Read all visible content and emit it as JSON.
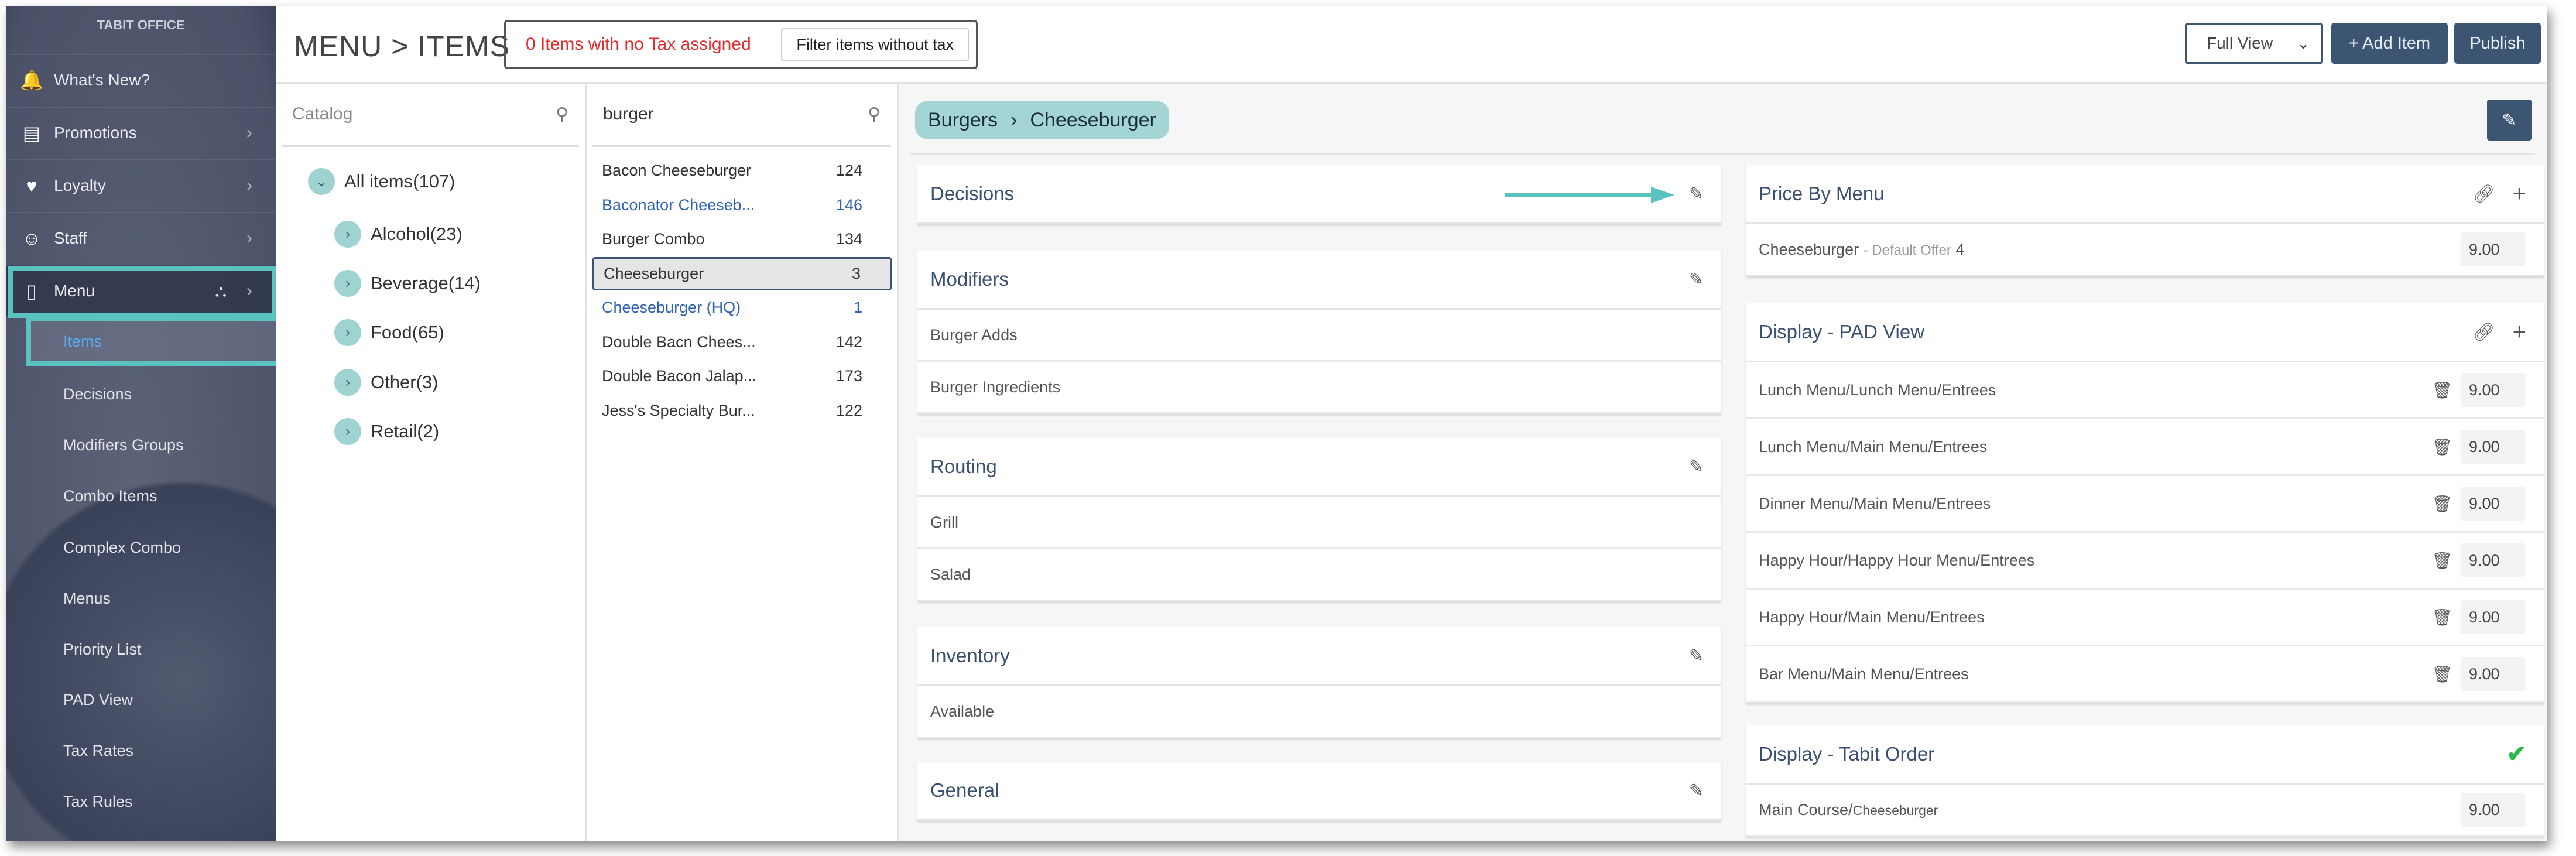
{
  "sidebar": {
    "brand": "TABIT OFFICE",
    "items": [
      {
        "label": "What's New?",
        "icon": "bell-icon",
        "chevron": false
      },
      {
        "label": "Promotions",
        "icon": "sale-sign-icon",
        "chevron": true
      },
      {
        "label": "Loyalty",
        "icon": "tag-heart-icon",
        "chevron": true
      },
      {
        "label": "Staff",
        "icon": "users-icon",
        "chevron": true
      },
      {
        "label": "Menu",
        "icon": "clipboard-icon",
        "chevron": true
      }
    ],
    "sub_items": [
      "Items",
      "Decisions",
      "Modifiers Groups",
      "Combo Items",
      "Complex Combo",
      "Menus",
      "Priority List",
      "PAD View",
      "Tax Rates",
      "Tax Rules"
    ],
    "active_sub": "Items",
    "highlight_color": "#5bc3bf"
  },
  "header": {
    "title": "MENU > ITEMS",
    "tax_warning": "0 Items with no Tax assigned",
    "filter_button": "Filter items without tax",
    "view_select": "Full View",
    "add_item": "+ Add Item",
    "publish": "Publish"
  },
  "catalog": {
    "search_placeholder": "Catalog",
    "tree": [
      {
        "label": "All items(107)",
        "expanded": true
      },
      {
        "label": "Alcohol(23)"
      },
      {
        "label": "Beverage(14)"
      },
      {
        "label": "Food(65)"
      },
      {
        "label": "Other(3)"
      },
      {
        "label": "Retail(2)"
      }
    ]
  },
  "items": {
    "search_value": "burger",
    "rows": [
      {
        "name": "Bacon Cheeseburger",
        "count": "124"
      },
      {
        "name": "Baconator Cheeseb...",
        "count": "146",
        "blue": true
      },
      {
        "name": "Burger Combo",
        "count": "134"
      },
      {
        "name": "Cheeseburger",
        "count": "3",
        "selected": true
      },
      {
        "name": "Cheeseburger (HQ)",
        "count": "1",
        "blue": true
      },
      {
        "name": "Double Bacn Chees...",
        "count": "142"
      },
      {
        "name": "Double Bacon Jalap...",
        "count": "173"
      },
      {
        "name": "Jess's Specialty Bur...",
        "count": "122"
      }
    ]
  },
  "detail": {
    "breadcrumb": [
      "Burgers",
      "›",
      "Cheeseburger"
    ],
    "left_cards": [
      {
        "title": "Decisions",
        "rows": []
      },
      {
        "title": "Modifiers",
        "rows": [
          "Burger Adds",
          "Burger Ingredients"
        ]
      },
      {
        "title": "Routing",
        "rows": [
          "Grill",
          "Salad"
        ]
      },
      {
        "title": "Inventory",
        "rows": [
          "Available"
        ]
      },
      {
        "title": "General",
        "rows": []
      }
    ],
    "price_by_menu": {
      "title": "Price By Menu",
      "row": {
        "name": "Cheeseburger",
        "offer": "- Default Offer",
        "num": "4",
        "price": "9.00"
      }
    },
    "pad_view": {
      "title": "Display - PAD View",
      "rows": [
        {
          "path": "Lunch Menu/Lunch Menu/Entrees",
          "price": "9.00"
        },
        {
          "path": "Lunch Menu/Main Menu/Entrees",
          "price": "9.00"
        },
        {
          "path": "Dinner Menu/Main Menu/Entrees",
          "price": "9.00"
        },
        {
          "path": "Happy Hour/Happy Hour Menu/Entrees",
          "price": "9.00"
        },
        {
          "path": "Happy Hour/Main Menu/Entrees",
          "price": "9.00"
        },
        {
          "path": "Bar Menu/Main Menu/Entrees",
          "price": "9.00"
        }
      ]
    },
    "tabit_order": {
      "title": "Display - Tabit Order",
      "row": {
        "course": "Main Course/",
        "name": "Cheeseburger",
        "price": "9.00"
      },
      "status_color": "#2db84a"
    }
  },
  "colors": {
    "primary": "#3b5573",
    "teal": "#a3d5d5",
    "link": "#2f62b5",
    "warning": "#e52b2b"
  }
}
